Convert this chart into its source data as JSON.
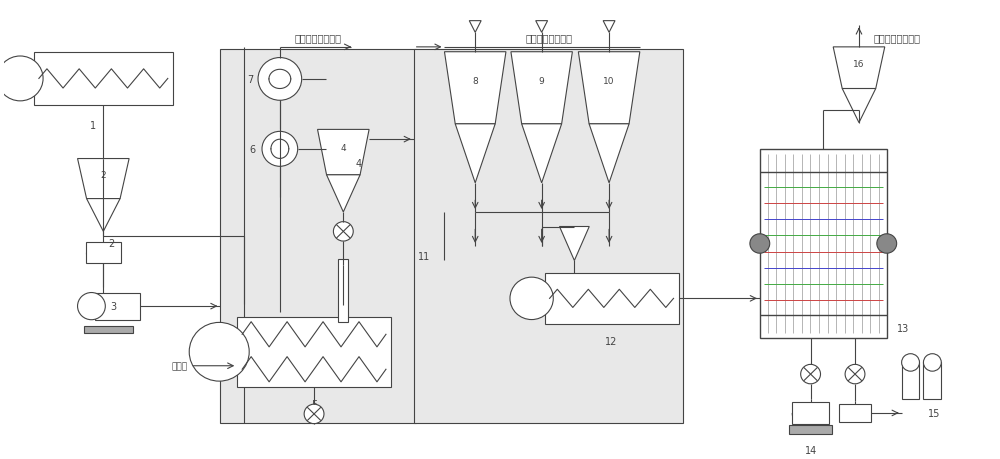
{
  "bg_color": "#ffffff",
  "line_color": "#444444",
  "box1_bg": "#e8e8e8",
  "box2_bg": "#e8e8e8",
  "title1": "一级粉体脱挥吸收",
  "title2": "二级粉体脱挥吸收",
  "title3": "三级烙体脱挥吸收",
  "label_hot_gas": "热氮气",
  "figsize": [
    10,
    4.6
  ],
  "dpi": 100
}
